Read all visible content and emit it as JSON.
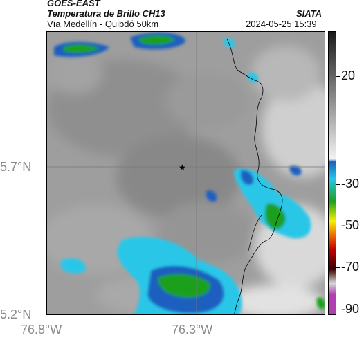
{
  "header": {
    "satellite": "GOES-EAST",
    "product": "Temperatura de Brillo CH13",
    "location": "Vía Medellín - Quibdó 50km",
    "agency": "SIATA",
    "timestamp": "2024-05-25 15:39"
  },
  "map": {
    "lat_labels": [
      "5.7°N",
      "5.2°N"
    ],
    "lon_labels": [
      "76.8°W",
      "76.3°W"
    ],
    "marker": "star"
  },
  "colorbar": {
    "labels": [
      "20",
      "-30",
      "-50",
      "-70",
      "-90"
    ],
    "colors": {
      "warm_high": "#1a1a1a",
      "warm_low": "#f2f2f2",
      "cold_blue": "#1b5fbf",
      "cold_cyan": "#29c6e8",
      "cold_green": "#1fa01f",
      "cold_yellow": "#f4f000",
      "cold_orange": "#f06a00",
      "cold_red": "#c00000",
      "cold_dark": "#3a0000",
      "cold_magenta": "#b040b0"
    }
  }
}
